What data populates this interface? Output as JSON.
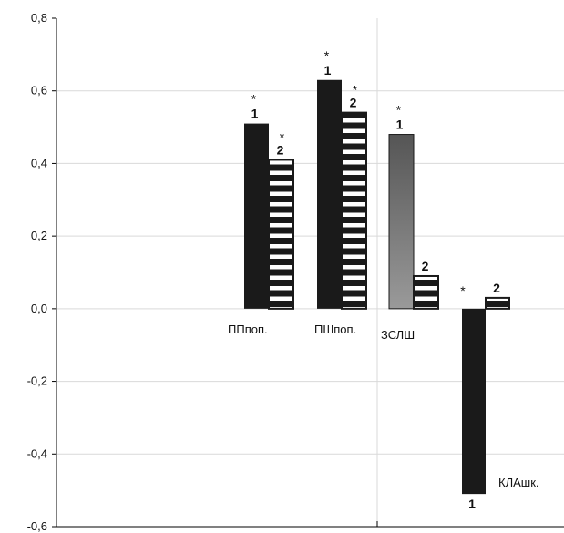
{
  "chart_data": {
    "type": "bar",
    "title": "",
    "xlabel": "",
    "ylabel": "",
    "ylim": [
      -0.6,
      0.8
    ],
    "yticks": [
      "0,8",
      "0,6",
      "0,4",
      "0,2",
      "0,0",
      "-0,2",
      "-0,4",
      "-0,6"
    ],
    "ytick_values": [
      0.8,
      0.6,
      0.4,
      0.2,
      0.0,
      -0.2,
      -0.4,
      -0.6
    ],
    "grid": true,
    "categories": [
      "ППпоп.",
      "ПШпоп.",
      "ЗСЛШ",
      "КЛАшк."
    ],
    "series": [
      {
        "label": "1",
        "values": [
          0.51,
          0.63,
          0.48,
          -0.51
        ]
      },
      {
        "label": "2",
        "values": [
          0.41,
          0.54,
          0.09,
          0.03
        ]
      }
    ],
    "significance": [
      [
        "*",
        "*"
      ],
      [
        "*",
        "*"
      ],
      [
        "*",
        ""
      ],
      [
        "*",
        ""
      ]
    ],
    "colors": {
      "series1": "#1a1a1a",
      "series1_alt_gradient_top": "#555555",
      "series1_alt_gradient_bottom": "#9a9a9a",
      "series2_fill": "#ffffff",
      "series2_stripe": "#1a1a1a",
      "grid": "#d9d9d9",
      "axis": "#000000"
    }
  }
}
